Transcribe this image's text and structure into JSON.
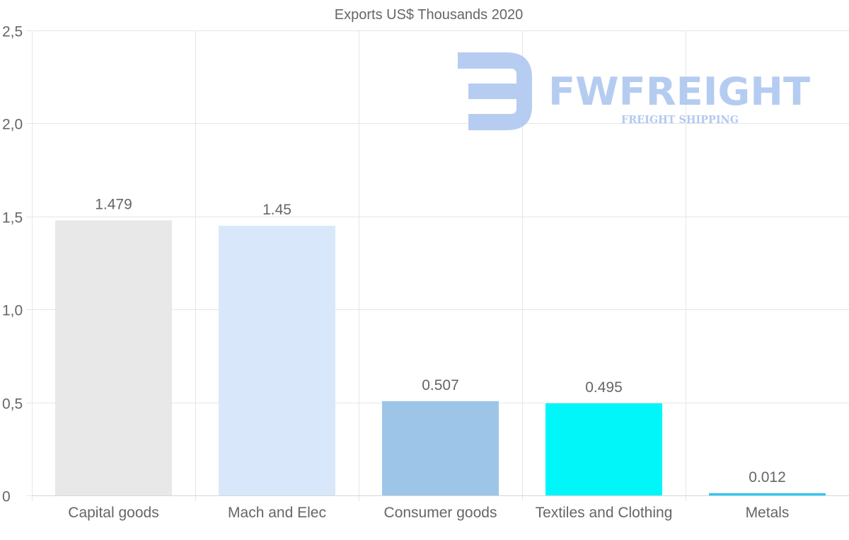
{
  "chart_data": {
    "type": "bar",
    "title": "Exports US$ Thousands 2020",
    "categories": [
      "Capital goods",
      "Mach and Elec",
      "Consumer goods",
      "Textiles and Clothing",
      "Metals"
    ],
    "values": [
      1.479,
      1.45,
      0.507,
      0.495,
      0.012
    ],
    "value_labels": [
      "1.479",
      "1.45",
      "0.507",
      "0.495",
      "0.012"
    ],
    "colors": [
      "#e8e8e8",
      "#d8e8fa",
      "#9dc5e8",
      "#00f6f9",
      "#2cc6f5"
    ],
    "ylim": [
      0,
      2.5
    ],
    "yticks": [
      0,
      0.5,
      1.0,
      1.5,
      2.0,
      2.5
    ],
    "ytick_labels": [
      "0",
      "0,5",
      "1,0",
      "1,5",
      "2,0",
      "2,5"
    ],
    "xlabel": "",
    "ylabel": "",
    "grid": true,
    "legend": "none"
  },
  "watermark": {
    "brand": "FWFREIGHT",
    "tagline": "FREIGHT SHIPPING",
    "color": "#a9c4ef"
  }
}
